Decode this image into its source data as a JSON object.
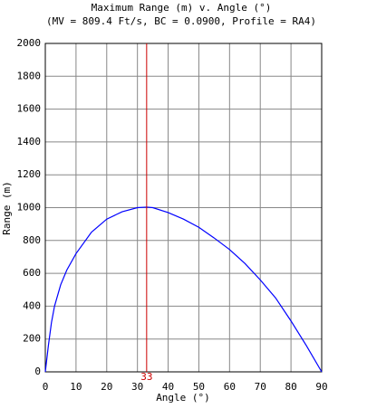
{
  "chart_data": {
    "type": "line",
    "title": "Maximum Range (m) v. Angle (°)",
    "subtitle": "(MV = 809.4 Ft/s, BC = 0.0900, Profile = RA4)",
    "x_label": "Angle (°)",
    "y_label": "Range (m)",
    "x": [
      0,
      1,
      2,
      3,
      5,
      7,
      10,
      15,
      20,
      25,
      30,
      33,
      35,
      40,
      45,
      50,
      55,
      60,
      65,
      70,
      75,
      80,
      85,
      90
    ],
    "series": [
      {
        "color": "#0000ff",
        "values": [
          0,
          160,
          300,
          400,
          530,
          620,
          720,
          850,
          930,
          975,
          1000,
          1003,
          1000,
          970,
          930,
          880,
          815,
          745,
          660,
          560,
          450,
          310,
          160,
          0
        ]
      }
    ],
    "xlim": [
      0,
      90
    ],
    "xticks": [
      0,
      10,
      20,
      30,
      40,
      50,
      60,
      70,
      80,
      90
    ],
    "ylim": [
      0,
      2000
    ],
    "yticks": [
      0,
      200,
      400,
      600,
      800,
      1000,
      1200,
      1400,
      1600,
      1800,
      2000
    ],
    "grid": true,
    "marker": {
      "value": 33,
      "color": "#cc0000"
    }
  }
}
